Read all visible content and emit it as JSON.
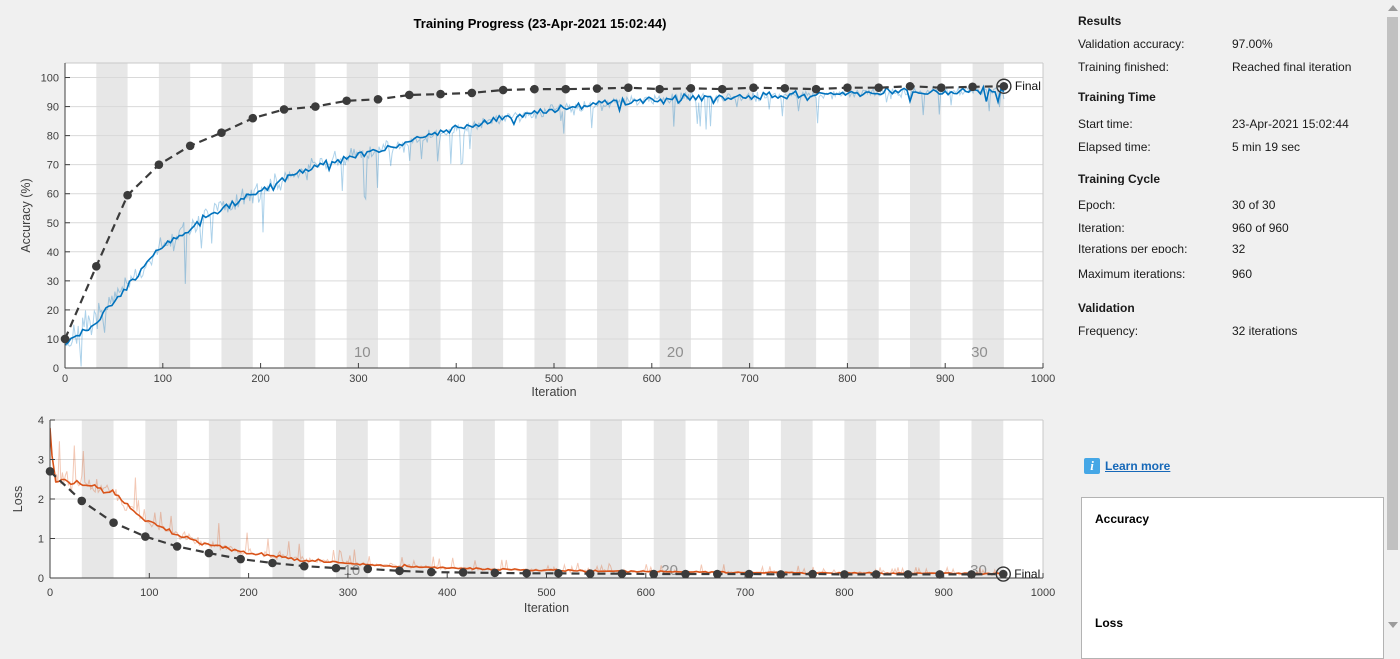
{
  "window": {
    "title": "Training Progress (23-Apr-2021 15:02:44)"
  },
  "colors": {
    "training_accuracy": "#0072BD",
    "training_accuracy_raw": "rgba(0,114,189,0.32)",
    "training_loss": "#D95319",
    "training_loss_raw": "rgba(217,83,25,0.32)",
    "validation": "#3b3b3b",
    "epoch_band": "#e7e7e7",
    "gridline": "#d9d9d9",
    "box": "#c9c9c9",
    "axis": "#3f3f3f",
    "epoch_label": "#8f8f8f",
    "link": "#1668b8",
    "info_icon": "#45a7e6",
    "background": "#f0f0f0"
  },
  "chart_data": [
    {
      "type": "line",
      "name": "accuracy",
      "ylabel": "Accuracy (%)",
      "xlabel": "Iteration",
      "xlim": [
        0,
        1000
      ],
      "ylim": [
        0,
        105
      ],
      "xticks": [
        0,
        100,
        200,
        300,
        400,
        500,
        600,
        700,
        800,
        900,
        1000
      ],
      "yticks": [
        0,
        10,
        20,
        30,
        40,
        50,
        60,
        70,
        80,
        90,
        100
      ],
      "grid": "horizontal",
      "epochs": {
        "count": 30,
        "size": 32
      },
      "epoch_labels": [
        {
          "text": "10",
          "it": 304
        },
        {
          "text": "20",
          "it": 624
        },
        {
          "text": "30",
          "it": 935
        }
      ],
      "x_start": 0,
      "x_step": 32,
      "validation": [
        10,
        35,
        59.5,
        70,
        76.5,
        81,
        86,
        89,
        90,
        92,
        92.5,
        94,
        94.3,
        94.7,
        95.7,
        96,
        96,
        96.2,
        96.5,
        96,
        96.3,
        96,
        96.5,
        96.3,
        96,
        96.5,
        96.5,
        97,
        96.5,
        96.8,
        97
      ],
      "training_trend": [
        9,
        16,
        28,
        41,
        48,
        55,
        60,
        65,
        69.5,
        72.5,
        75,
        78,
        81,
        83.5,
        86,
        88,
        89.5,
        91,
        92,
        92.5,
        93,
        93.2,
        93.5,
        94,
        94,
        94.5,
        95,
        95,
        95.3,
        95.5,
        96
      ],
      "final": {
        "x": 960,
        "y": 97,
        "label": "Final"
      }
    },
    {
      "type": "line",
      "name": "loss",
      "ylabel": "Loss",
      "xlabel": "Iteration",
      "xlim": [
        0,
        1000
      ],
      "ylim": [
        0,
        4
      ],
      "xticks": [
        0,
        100,
        200,
        300,
        400,
        500,
        600,
        700,
        800,
        900,
        1000
      ],
      "yticks": [
        0,
        1,
        2,
        3,
        4
      ],
      "grid": "horizontal",
      "epochs": {
        "count": 30,
        "size": 32
      },
      "epoch_labels": [
        {
          "text": "10",
          "it": 304
        },
        {
          "text": "20",
          "it": 624
        },
        {
          "text": "30",
          "it": 935
        }
      ],
      "x_start": 0,
      "x_step": 32,
      "validation": [
        2.7,
        1.95,
        1.4,
        1.05,
        0.8,
        0.63,
        0.48,
        0.38,
        0.3,
        0.25,
        0.23,
        0.18,
        0.15,
        0.14,
        0.13,
        0.12,
        0.12,
        0.11,
        0.11,
        0.1,
        0.1,
        0.1,
        0.1,
        0.09,
        0.1,
        0.09,
        0.09,
        0.09,
        0.09,
        0.09,
        0.1
      ],
      "training_trend": [
        2.55,
        2.4,
        2.15,
        1.45,
        1.1,
        0.85,
        0.68,
        0.55,
        0.46,
        0.4,
        0.34,
        0.3,
        0.27,
        0.24,
        0.22,
        0.2,
        0.19,
        0.18,
        0.17,
        0.16,
        0.15,
        0.15,
        0.14,
        0.14,
        0.13,
        0.13,
        0.12,
        0.12,
        0.12,
        0.11,
        0.11
      ],
      "start_spike": [
        [
          0,
          3.8
        ],
        [
          2,
          3.1
        ],
        [
          4,
          2.75
        ]
      ],
      "final": {
        "x": 960,
        "y": 0.1,
        "label": "Final"
      }
    }
  ],
  "results_panel": {
    "sections": [
      {
        "heading": "Results",
        "rows": [
          {
            "label": "Validation accuracy:",
            "value": "97.00%"
          },
          {
            "label": "Training finished:",
            "value": "Reached final iteration"
          }
        ]
      },
      {
        "heading": "Training Time",
        "rows": [
          {
            "label": "Start time:",
            "value": "23-Apr-2021 15:02:44"
          },
          {
            "label": "Elapsed time:",
            "value": "5 min 19 sec"
          }
        ]
      },
      {
        "heading": "Training Cycle",
        "rows": [
          {
            "label": "Epoch:",
            "value": "30 of 30"
          },
          {
            "label": "Iteration:",
            "value": "960 of 960"
          },
          {
            "label": "Iterations per epoch:",
            "value": "32"
          },
          {
            "label": "Maximum iterations:",
            "value": "960"
          }
        ]
      },
      {
        "heading": "Validation",
        "rows": [
          {
            "label": "Frequency:",
            "value": "32 iterations"
          }
        ]
      }
    ],
    "learn_more": "Learn more",
    "legend": {
      "accuracy": "Accuracy",
      "loss": "Loss"
    }
  }
}
